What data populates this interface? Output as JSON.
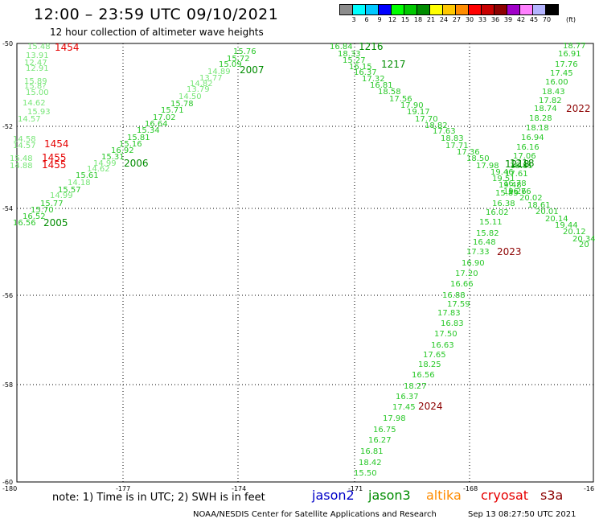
{
  "header": {
    "title": "12:00 – 23:59 UTC 09/10/2021",
    "subtitle": "12 hour collection of altimeter wave heights"
  },
  "colorbar": {
    "colors": [
      "#8c8c8c",
      "#00ffff",
      "#00c8ff",
      "#0000ff",
      "#00ff00",
      "#00c800",
      "#008c00",
      "#ffff00",
      "#ffc800",
      "#ff8c00",
      "#ff0000",
      "#c80000",
      "#8c0000",
      "#a000c8",
      "#ff80ff",
      "#b4b4ff",
      "#000000"
    ],
    "labels": [
      "3",
      "6",
      "9",
      "12",
      "15",
      "18",
      "21",
      "24",
      "27",
      "30",
      "33",
      "36",
      "39",
      "42",
      "45",
      "70"
    ],
    "unit": "(ft)"
  },
  "axes": {
    "lon_labels": [
      "-180",
      "-177",
      "-174",
      "-171",
      "-168",
      "-16"
    ],
    "lat_labels": [
      "-50",
      "-52",
      "-54",
      "-56",
      "-58",
      "-60"
    ]
  },
  "track_colors": {
    "light": "#78e678",
    "mid": "#28c828",
    "dark": "#008c00",
    "red": "#e60000",
    "darkred": "#8c0000"
  },
  "observations": [
    [
      "15.48",
      "light"
    ],
    [
      "13.91",
      "light"
    ],
    [
      "12.47",
      "light"
    ],
    [
      "12.91",
      "light"
    ],
    [
      "15.89",
      "light"
    ],
    [
      "15.8?",
      "light"
    ],
    [
      "15.00",
      "light"
    ],
    [
      "14.62",
      "light"
    ],
    [
      "15.93",
      "light"
    ],
    [
      "14.57",
      "light"
    ],
    [
      "14.58",
      "light"
    ],
    [
      "14.57",
      "light"
    ],
    [
      "15.48",
      "light"
    ],
    [
      "14.88",
      "light"
    ],
    [
      "16.56",
      "mid"
    ],
    [
      "16.52",
      "mid"
    ],
    [
      "15.70",
      "mid"
    ],
    [
      "15.77",
      "mid"
    ],
    [
      "14.99",
      "light"
    ],
    [
      "15.57",
      "mid"
    ],
    [
      "14.18",
      "light"
    ],
    [
      "15.61",
      "mid"
    ],
    [
      "14.62",
      "light"
    ],
    [
      "14.99",
      "light"
    ],
    [
      "15.31",
      "mid"
    ],
    [
      "16.92",
      "mid"
    ],
    [
      "15.16",
      "mid"
    ],
    [
      "15.81",
      "mid"
    ],
    [
      "15.34",
      "mid"
    ],
    [
      "16.64",
      "mid"
    ],
    [
      "17.02",
      "mid"
    ],
    [
      "15.71",
      "mid"
    ],
    [
      "15.78",
      "mid"
    ],
    [
      "14.50",
      "light"
    ],
    [
      "13.79",
      "light"
    ],
    [
      "14.82",
      "light"
    ],
    [
      "13.77",
      "light"
    ],
    [
      "14.89",
      "light"
    ],
    [
      "15.09",
      "mid"
    ],
    [
      "15.72",
      "mid"
    ],
    [
      "15.76",
      "mid"
    ],
    [
      "16.84",
      "mid"
    ],
    [
      "18.33",
      "mid"
    ],
    [
      "15.27",
      "mid"
    ],
    [
      "16.15",
      "mid"
    ],
    [
      "16.37",
      "mid"
    ],
    [
      "17.32",
      "mid"
    ],
    [
      "16.81",
      "mid"
    ],
    [
      "18.58",
      "mid"
    ],
    [
      "17.56",
      "mid"
    ],
    [
      "17.90",
      "mid"
    ],
    [
      "19.17",
      "mid"
    ],
    [
      "17.70",
      "mid"
    ],
    [
      "18.82",
      "mid"
    ],
    [
      "17.63",
      "mid"
    ],
    [
      "18.83",
      "mid"
    ],
    [
      "17.71",
      "mid"
    ],
    [
      "17.36",
      "mid"
    ],
    [
      "18.50",
      "mid"
    ],
    [
      "17.98",
      "mid"
    ],
    [
      "19.46",
      "mid"
    ],
    [
      "19.51",
      "mid"
    ],
    [
      "19.48",
      "mid"
    ],
    [
      "19.26",
      "mid"
    ],
    [
      "16.76",
      "mid"
    ],
    [
      "20.02",
      "mid"
    ],
    [
      "18.61",
      "mid"
    ],
    [
      "20.01",
      "mid"
    ],
    [
      "20.14",
      "mid"
    ],
    [
      "19.44",
      "mid"
    ],
    [
      "20.12",
      "mid"
    ],
    [
      "20.34",
      "mid"
    ],
    [
      "20",
      "mid"
    ],
    [
      "18.77",
      "mid"
    ],
    [
      "16.91",
      "mid"
    ],
    [
      "17.76",
      "mid"
    ],
    [
      "17.45",
      "mid"
    ],
    [
      "16.00",
      "mid"
    ],
    [
      "18.43",
      "mid"
    ],
    [
      "17.82",
      "mid"
    ],
    [
      "18.74",
      "mid"
    ],
    [
      "18.28",
      "mid"
    ],
    [
      "18.18",
      "mid"
    ],
    [
      "16.94",
      "mid"
    ],
    [
      "16.16",
      "mid"
    ],
    [
      "17.06",
      "mid"
    ],
    [
      "16.81",
      "mid"
    ],
    [
      "17.61",
      "mid"
    ],
    [
      "16.78",
      "mid"
    ],
    [
      "15.85",
      "mid"
    ],
    [
      "16.38",
      "mid"
    ],
    [
      "16.02",
      "mid"
    ],
    [
      "15.11",
      "mid"
    ],
    [
      "15.82",
      "mid"
    ],
    [
      "16.48",
      "mid"
    ],
    [
      "17.33",
      "mid"
    ],
    [
      "16.90",
      "mid"
    ],
    [
      "17.20",
      "mid"
    ],
    [
      "16.66",
      "mid"
    ],
    [
      "16.88",
      "mid"
    ],
    [
      "17.59",
      "mid"
    ],
    [
      "17.83",
      "mid"
    ],
    [
      "16.83",
      "mid"
    ],
    [
      "17.50",
      "mid"
    ],
    [
      "16.63",
      "mid"
    ],
    [
      "17.65",
      "mid"
    ],
    [
      "18.25",
      "mid"
    ],
    [
      "16.56",
      "mid"
    ],
    [
      "18.27",
      "mid"
    ],
    [
      "16.37",
      "mid"
    ],
    [
      "17.45",
      "mid"
    ],
    [
      "17.98",
      "mid"
    ],
    [
      "16.75",
      "mid"
    ],
    [
      "16.27",
      "mid"
    ],
    [
      "16.81",
      "mid"
    ],
    [
      "18.42",
      "mid"
    ],
    [
      "15.50",
      "mid"
    ]
  ],
  "time_labels": [
    [
      "1454",
      "red"
    ],
    [
      "1454",
      "red"
    ],
    [
      "1455",
      "red"
    ],
    [
      "1455",
      "red"
    ],
    [
      "2006",
      "dark"
    ],
    [
      "2005",
      "dark"
    ],
    [
      "2007",
      "dark"
    ],
    [
      "1216",
      "dark"
    ],
    [
      "1217",
      "dark"
    ],
    [
      "1218",
      "dark"
    ],
    [
      "1218",
      "dark"
    ],
    [
      "2022",
      "darkred"
    ],
    [
      "2023",
      "darkred"
    ],
    [
      "2024",
      "darkred"
    ]
  ],
  "footer": {
    "note": "note:  1) Time is in UTC;  2) SWH is in feet",
    "legend": [
      {
        "label": "jason2",
        "color": "#0000c8"
      },
      {
        "label": "jason3",
        "color": "#008c00"
      },
      {
        "label": "altika",
        "color": "#ff8c00"
      },
      {
        "label": "cryosat",
        "color": "#e60000"
      },
      {
        "label": "s3a",
        "color": "#8c0000"
      }
    ],
    "credit": "NOAA/NESDIS Center for Satellite Applications and Research",
    "date": "Sep 13 08:27:50 UTC 2021"
  }
}
